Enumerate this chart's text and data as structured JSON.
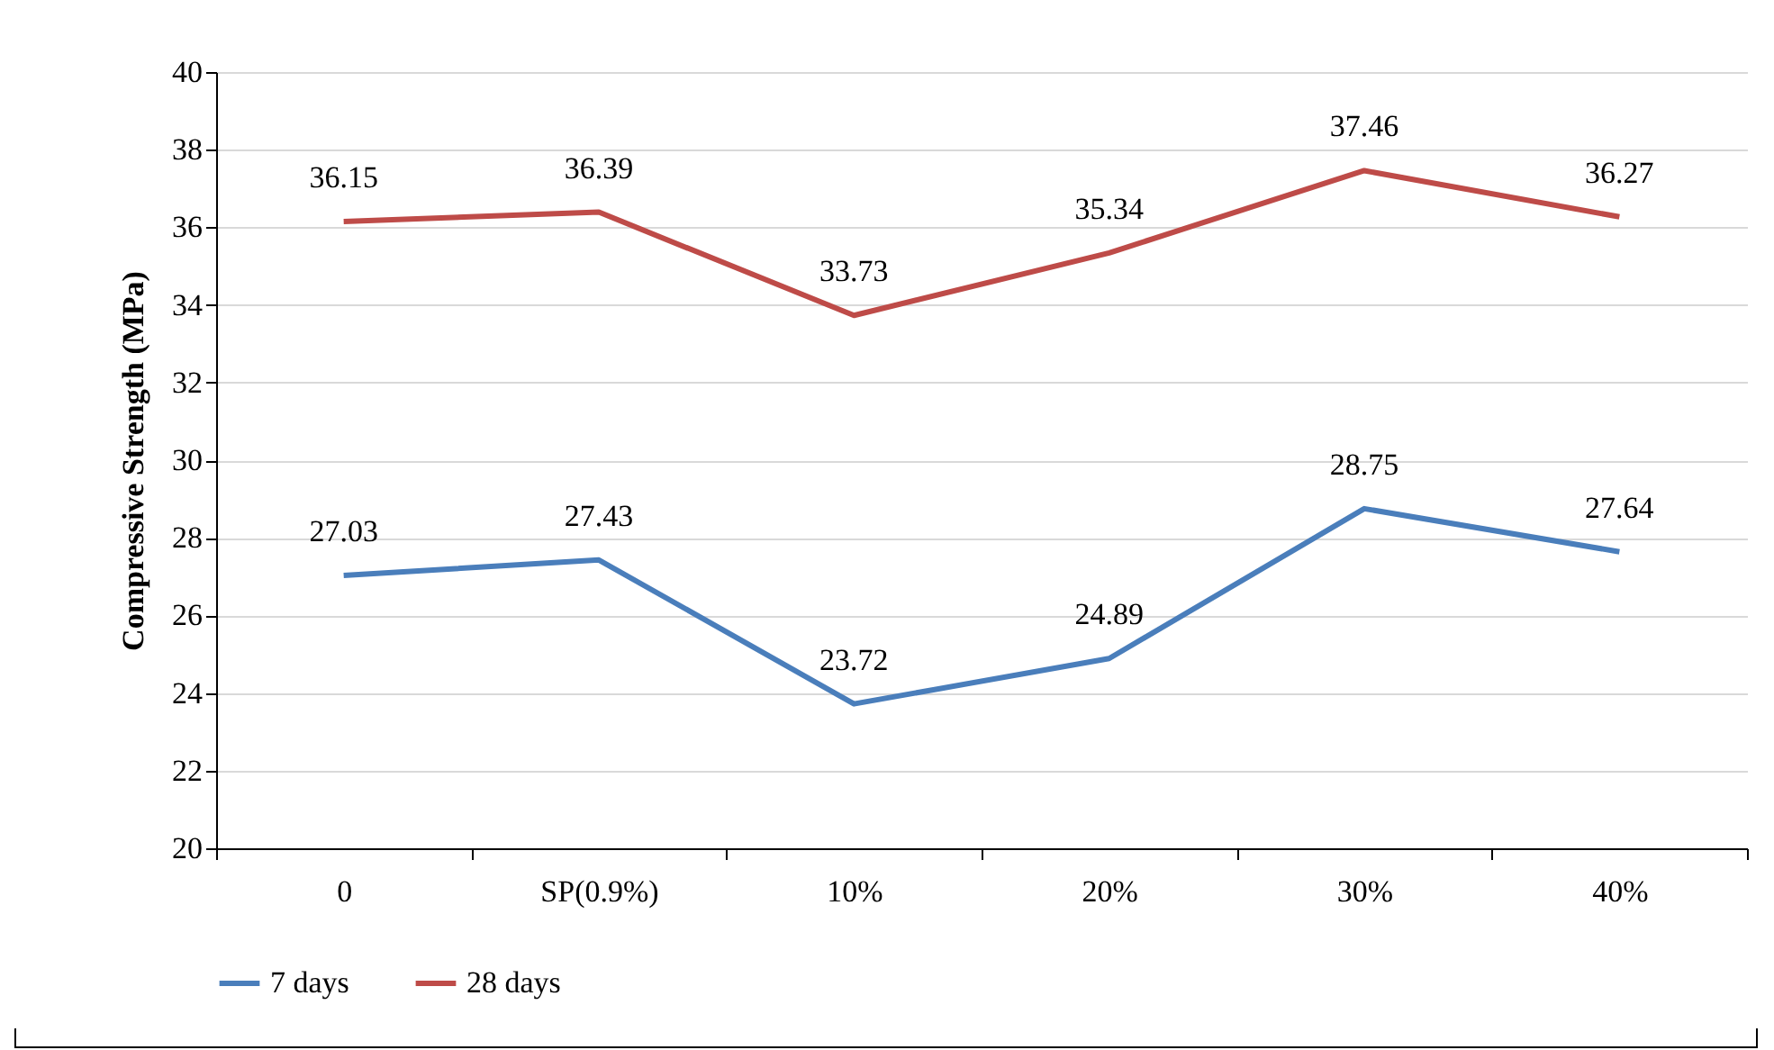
{
  "chart_data": {
    "type": "line",
    "ylabel": "Compressive Strength (MPa)",
    "categories": [
      "0",
      "SP(0.9%)",
      "10%",
      "20%",
      "30%",
      "40%"
    ],
    "series": [
      {
        "name": "7 days",
        "color": "#4a7ebb",
        "values": [
          27.03,
          27.43,
          23.72,
          24.89,
          28.75,
          27.64
        ]
      },
      {
        "name": "28 days",
        "color": "#be4b48",
        "values": [
          36.15,
          36.39,
          33.73,
          35.34,
          37.46,
          36.27
        ]
      }
    ],
    "ylim": [
      20,
      40
    ],
    "yticks": [
      20,
      22,
      24,
      26,
      28,
      30,
      32,
      34,
      36,
      38,
      40
    ],
    "grid": "y",
    "legend": "bottom",
    "data_labels": true
  }
}
